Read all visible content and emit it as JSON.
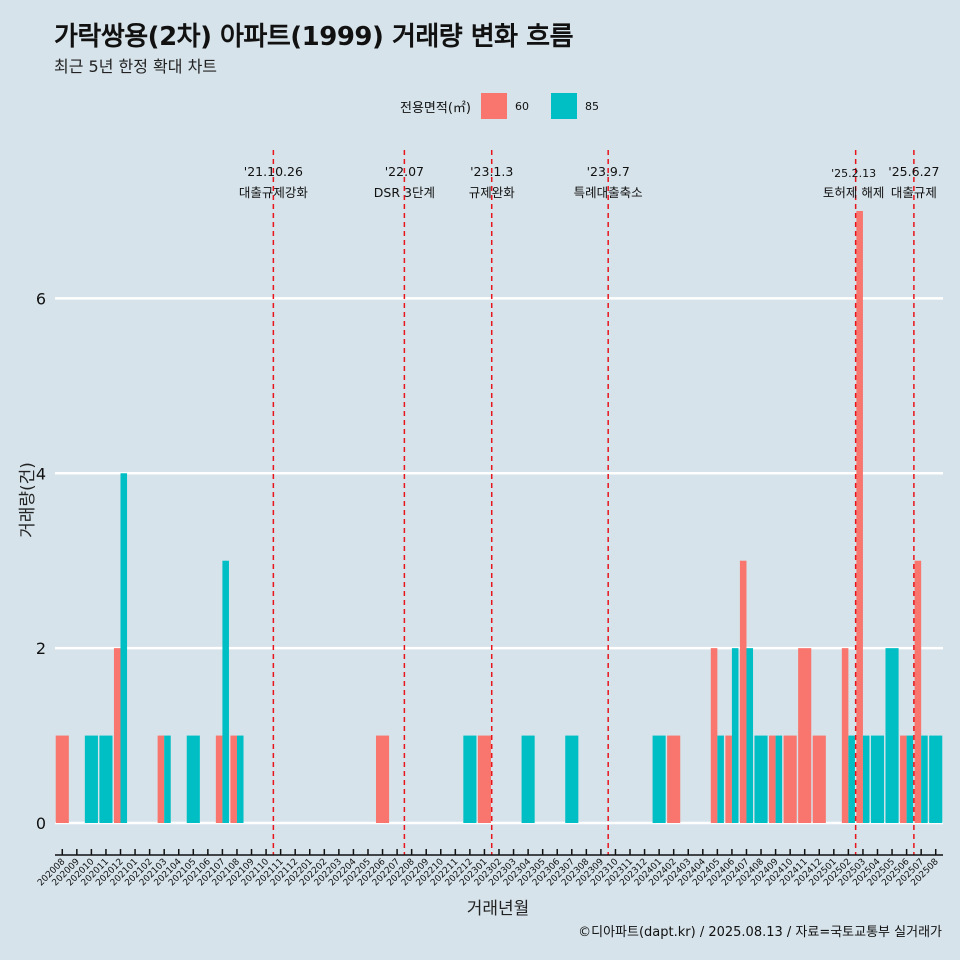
{
  "header": {
    "title": "가락쌍용(2차) 아파트(1999) 거래량 변화 흐름",
    "subtitle": "최근 5년 한정 확대 차트"
  },
  "legend": {
    "title": "전용면적(㎡)",
    "items": [
      {
        "label": "60",
        "color": "#f8766d"
      },
      {
        "label": "85",
        "color": "#00bfc4"
      }
    ]
  },
  "caption": "©디아파트(dapt.kr) / 2025.08.13 / 자료=국토교통부 실거래가",
  "chart_data": {
    "type": "bar",
    "xlabel": "거래년월",
    "ylabel": "거래량(건)",
    "ylim": [
      0,
      7
    ],
    "yticks": [
      0,
      2,
      4,
      6
    ],
    "grid": "horizontal",
    "legend_position": "top",
    "categories": [
      "202008",
      "202009",
      "202010",
      "202011",
      "202012",
      "202101",
      "202102",
      "202103",
      "202104",
      "202105",
      "202106",
      "202107",
      "202108",
      "202109",
      "202110",
      "202111",
      "202112",
      "202201",
      "202202",
      "202203",
      "202204",
      "202205",
      "202206",
      "202207",
      "202208",
      "202209",
      "202210",
      "202211",
      "202212",
      "202301",
      "202302",
      "202303",
      "202304",
      "202305",
      "202306",
      "202307",
      "202308",
      "202309",
      "202310",
      "202311",
      "202312",
      "202401",
      "202402",
      "202403",
      "202404",
      "202405",
      "202406",
      "202407",
      "202408",
      "202409",
      "202410",
      "202411",
      "202412",
      "202501",
      "202502",
      "202503",
      "202504",
      "202505",
      "202506",
      "202507",
      "202508"
    ],
    "series": [
      {
        "name": "60",
        "color": "#f8766d",
        "values": [
          1,
          0,
          0,
          0,
          2,
          0,
          0,
          1,
          0,
          0,
          0,
          1,
          1,
          0,
          0,
          0,
          0,
          0,
          0,
          0,
          0,
          0,
          1,
          0,
          0,
          0,
          0,
          0,
          0,
          1,
          0,
          0,
          0,
          0,
          0,
          0,
          0,
          0,
          0,
          0,
          0,
          0,
          1,
          0,
          0,
          2,
          1,
          3,
          0,
          1,
          1,
          2,
          1,
          0,
          2,
          7,
          0,
          0,
          1,
          3,
          0
        ]
      },
      {
        "name": "85",
        "color": "#00bfc4",
        "values": [
          0,
          0,
          1,
          1,
          4,
          0,
          0,
          1,
          0,
          1,
          0,
          3,
          1,
          0,
          0,
          0,
          0,
          0,
          0,
          0,
          0,
          0,
          0,
          0,
          0,
          0,
          0,
          0,
          1,
          0,
          0,
          0,
          1,
          0,
          0,
          1,
          0,
          0,
          0,
          0,
          0,
          1,
          0,
          0,
          0,
          1,
          2,
          2,
          1,
          1,
          0,
          0,
          0,
          0,
          1,
          1,
          1,
          2,
          1,
          1,
          1
        ]
      }
    ],
    "events": [
      {
        "date": "'21.10.26",
        "label": "대출규제강화",
        "after": "202110"
      },
      {
        "date": "'22.07",
        "label": "DSR 3단계",
        "after": "202207"
      },
      {
        "date": "'23.1.3",
        "label": "규제완화",
        "after": "202301"
      },
      {
        "date": "'23.9.7",
        "label": "특례대출축소",
        "after": "202309"
      },
      {
        "date": "'25.2.13",
        "label": "토허제 해제",
        "after": "202502"
      },
      {
        "date": "'25.6.27",
        "label": "대출규제",
        "after": "202506"
      }
    ]
  }
}
